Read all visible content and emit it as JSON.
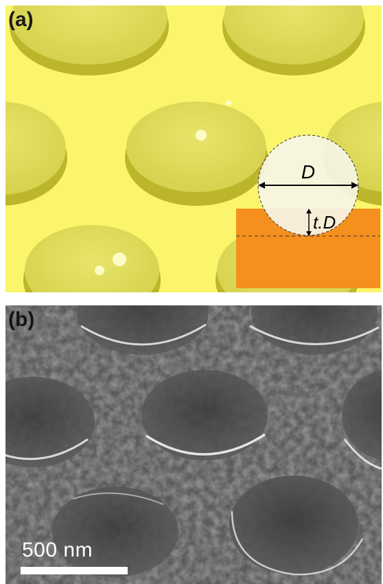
{
  "panel_a": {
    "label": "(a)",
    "diameter_symbol": "D",
    "depth_symbol": "t.D",
    "colors": {
      "background": "#fbf56b",
      "pit": "#e3e060",
      "pit_rim": "#bcb62a",
      "substrate": "#f5901e",
      "sphere": "#f6f5e6"
    }
  },
  "panel_b": {
    "label": "(b)",
    "scale_bar_text": "500 nm",
    "colors": {
      "background": "#4a4a4a",
      "scale_bar": "#ffffff"
    }
  }
}
